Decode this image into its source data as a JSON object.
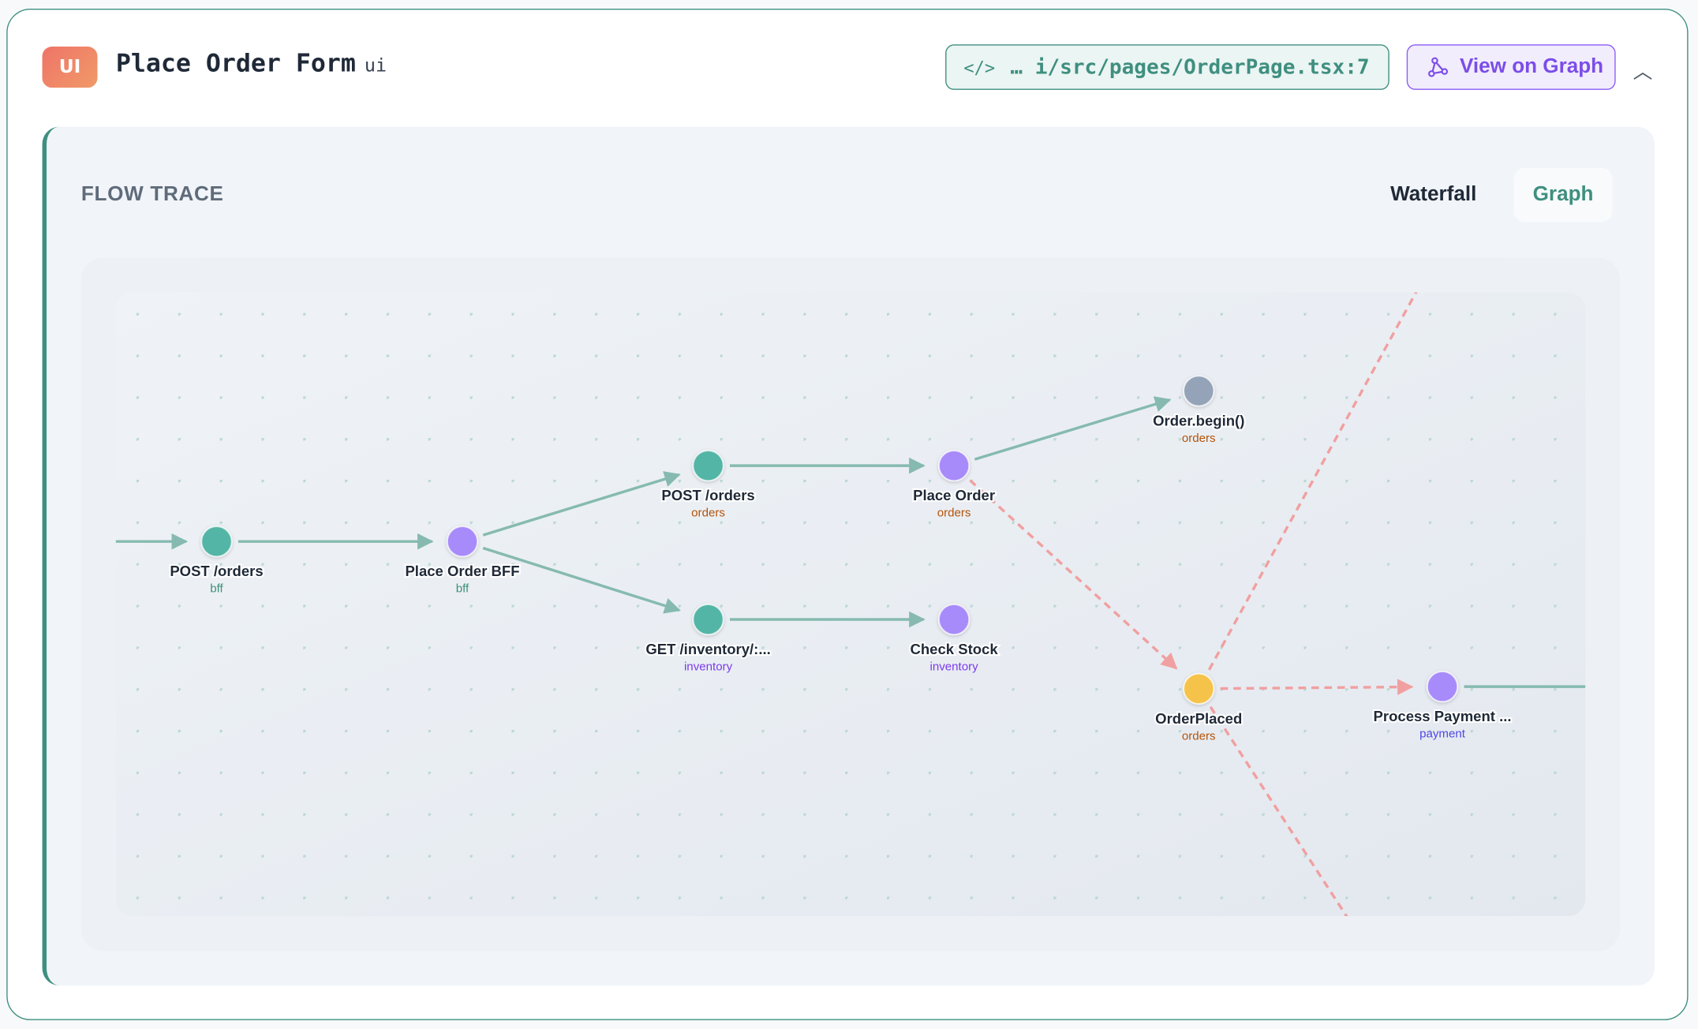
{
  "header": {
    "badge": "UI",
    "title": "Place Order Form",
    "kind": "ui",
    "source_path": "… i/src/pages/OrderPage.tsx:7",
    "view_on_graph": "View on Graph"
  },
  "panel": {
    "title": "FLOW TRACE",
    "tabs": [
      {
        "label": "Waterfall",
        "active": false
      },
      {
        "label": "Graph",
        "active": true
      }
    ]
  },
  "colors": {
    "accent": "#3f8f80",
    "purple": "#8b5cf6",
    "http_node": "#52b5a5",
    "handler_node": "#a78bfa",
    "event_node": "#f5c34a",
    "call_node": "#94a3b8",
    "edge": "#86bab0",
    "async_edge": "#f0a0a0"
  },
  "nodes": [
    {
      "id": "n1",
      "label": "POST /orders",
      "service": "bff",
      "type": "http"
    },
    {
      "id": "n2",
      "label": "Place Order BFF",
      "service": "bff",
      "type": "handler"
    },
    {
      "id": "n3",
      "label": "POST /orders",
      "service": "orders",
      "type": "http"
    },
    {
      "id": "n4",
      "label": "GET /inventory/:...",
      "service": "inventory",
      "type": "http"
    },
    {
      "id": "n5",
      "label": "Place Order",
      "service": "orders",
      "type": "handler"
    },
    {
      "id": "n6",
      "label": "Check Stock",
      "service": "inventory",
      "type": "handler"
    },
    {
      "id": "n7",
      "label": "Order.begin()",
      "service": "orders",
      "type": "call"
    },
    {
      "id": "n8",
      "label": "OrderPlaced",
      "service": "orders",
      "type": "event"
    },
    {
      "id": "n9",
      "label": "Process Payment ...",
      "service": "payment",
      "type": "handler"
    }
  ],
  "edges": [
    {
      "from": "in",
      "to": "n1",
      "kind": "sync"
    },
    {
      "from": "n1",
      "to": "n2",
      "kind": "sync"
    },
    {
      "from": "n2",
      "to": "n3",
      "kind": "sync"
    },
    {
      "from": "n2",
      "to": "n4",
      "kind": "sync"
    },
    {
      "from": "n3",
      "to": "n5",
      "kind": "sync"
    },
    {
      "from": "n4",
      "to": "n6",
      "kind": "sync"
    },
    {
      "from": "n5",
      "to": "n7",
      "kind": "sync"
    },
    {
      "from": "n5",
      "to": "n8",
      "kind": "async"
    },
    {
      "from": "n8",
      "to": "n9",
      "kind": "async"
    },
    {
      "from": "n8",
      "to": "out-top",
      "kind": "async"
    },
    {
      "from": "n8",
      "to": "out-bottom",
      "kind": "async"
    },
    {
      "from": "n9",
      "to": "out-right",
      "kind": "sync"
    }
  ]
}
